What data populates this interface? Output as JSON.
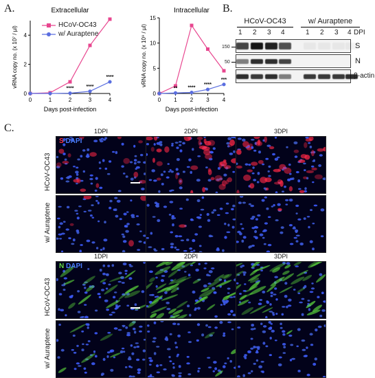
{
  "panel_a": {
    "letter": "A.",
    "legend": [
      {
        "label": "HCoV-OC43",
        "color": "#e8468f",
        "marker": "square"
      },
      {
        "label": "w/ Auraptene",
        "color": "#5a6ee0",
        "marker": "circle"
      }
    ]
  },
  "chart_data": [
    {
      "type": "line",
      "title": "Extracellular",
      "xlabel": "Days post-infection",
      "ylabel": "vRNA copy no. (x 10⁷ / µl)",
      "x": [
        0,
        1,
        2,
        3,
        4
      ],
      "ylim": [
        0,
        5
      ],
      "yticks": [
        0,
        2,
        4
      ],
      "series": [
        {
          "name": "HCoV-OC43",
          "values": [
            0,
            0.05,
            0.8,
            3.3,
            5.1
          ],
          "color": "#e8468f"
        },
        {
          "name": "w/ Auraptene",
          "values": [
            0,
            0,
            0.02,
            0.15,
            0.8
          ],
          "color": "#5a6ee0"
        }
      ],
      "annotations": [
        {
          "x": 2,
          "text": "****"
        },
        {
          "x": 3,
          "text": "****"
        },
        {
          "x": 4,
          "text": "****"
        }
      ]
    },
    {
      "type": "line",
      "title": "Intracellular",
      "xlabel": "Days post-infection",
      "ylabel": "vRNA copy no. (x 10⁹ / µl)",
      "x": [
        0,
        1,
        2,
        3,
        4
      ],
      "ylim": [
        0,
        15
      ],
      "yticks": [
        0,
        5,
        10,
        15
      ],
      "series": [
        {
          "name": "HCoV-OC43",
          "values": [
            0,
            1.5,
            13.5,
            8.8,
            4.5
          ],
          "color": "#e8468f"
        },
        {
          "name": "w/ Auraptene",
          "values": [
            0,
            0.1,
            0.2,
            0.8,
            1.8
          ],
          "color": "#5a6ee0"
        }
      ],
      "annotations": [
        {
          "x": 1,
          "text": "**"
        },
        {
          "x": 2,
          "text": "****"
        },
        {
          "x": 3,
          "text": "****"
        },
        {
          "x": 4,
          "text": "***"
        }
      ]
    }
  ],
  "panel_b": {
    "letter": "B.",
    "group_left": "HCoV-OC43",
    "group_right": "w/ Auraptene",
    "lanes_left": [
      "1",
      "2",
      "3",
      "4"
    ],
    "lanes_right": [
      "1",
      "2",
      "3",
      "4"
    ],
    "dpi_label": "DPI",
    "bands": [
      "S",
      "N",
      "β-actin"
    ],
    "markers": [
      "150",
      "50"
    ],
    "intensities": {
      "S": [
        0.75,
        0.95,
        0.9,
        0.7,
        0.05,
        0.05,
        0.05,
        0.05
      ],
      "N": [
        0.5,
        0.85,
        0.85,
        0.75,
        0.0,
        0.0,
        0.0,
        0.0
      ],
      "β-actin": [
        0.85,
        0.8,
        0.85,
        0.5,
        0.8,
        0.8,
        0.8,
        0.85
      ]
    }
  },
  "panel_c": {
    "letter": "C.",
    "columns_top": [
      "1DPI",
      "2DPI",
      "3DPI"
    ],
    "columns_bottom": [
      "1DPI",
      "2DPI",
      "3DPI"
    ],
    "rows": [
      "HCoV-OC43",
      "w/ Auraptene",
      "HCoV-OC43",
      "w/ Auraptene"
    ],
    "stain_top": {
      "marker": "S",
      "dapi": "DAPI",
      "marker_color": "#ff3344",
      "dapi_color": "#4a7dff"
    },
    "stain_bottom": {
      "marker": "N",
      "dapi": "DAPI",
      "marker_color": "#66dd44",
      "dapi_color": "#4a7dff"
    },
    "signal_levels": {
      "s_infected": [
        0.25,
        0.65,
        0.7
      ],
      "s_auraptene": [
        0.08,
        0.03,
        0.03
      ],
      "n_infected": [
        0.25,
        0.75,
        0.6
      ],
      "n_auraptene": [
        0.1,
        0.05,
        0.03
      ]
    }
  }
}
